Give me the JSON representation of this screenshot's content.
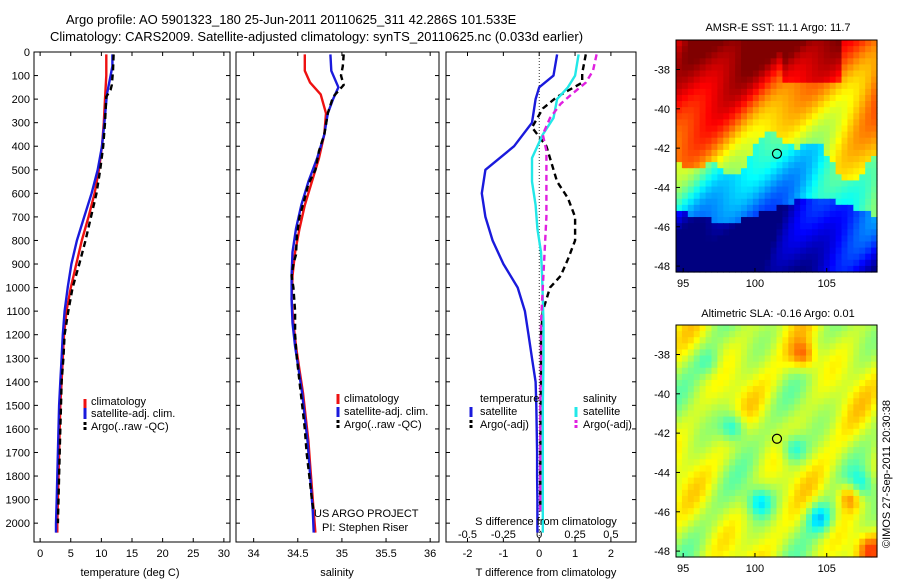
{
  "header": {
    "line1": "Argo profile: AO 5901323_180 25-Jun-2011 20110625_311 42.286S 101.533E",
    "line2": "Climatology: CARS2009. Satellite-adjusted climatology: synTS_20110625.nc (0.033d earlier)"
  },
  "colors": {
    "climatology": "#ee1111",
    "satellite": "#1a1adc",
    "argo": "#000000",
    "sal_satellite": "#22e8e8",
    "sal_argo": "#e020e0"
  },
  "chart_data": [
    {
      "id": "temperature",
      "type": "line",
      "xlabel": "temperature (deg C)",
      "ylabel": "",
      "xlim": [
        -1,
        31
      ],
      "ylim": [
        0,
        2080
      ],
      "y_reversed": true,
      "xticks": [
        0,
        5,
        10,
        15,
        20,
        25,
        30
      ],
      "yticks": [
        0,
        100,
        200,
        300,
        400,
        500,
        600,
        700,
        800,
        900,
        1000,
        1100,
        1200,
        1300,
        1400,
        1500,
        1600,
        1700,
        1800,
        1900,
        2000
      ],
      "legend": [
        "climatology",
        "satellite-adj. clim.",
        "Argo(..raw -QC)"
      ],
      "series": [
        {
          "name": "climatology",
          "style": "solid",
          "color": "#ee1111",
          "points": [
            [
              10.8,
              10
            ],
            [
              10.8,
              100
            ],
            [
              10.6,
              200
            ],
            [
              10.4,
              300
            ],
            [
              10.1,
              400
            ],
            [
              9.6,
              500
            ],
            [
              8.9,
              600
            ],
            [
              7.9,
              700
            ],
            [
              6.8,
              800
            ],
            [
              5.9,
              900
            ],
            [
              5.0,
              1000
            ],
            [
              4.3,
              1100
            ],
            [
              3.9,
              1200
            ],
            [
              3.7,
              1300
            ],
            [
              3.5,
              1400
            ],
            [
              3.3,
              1500
            ],
            [
              3.2,
              1600
            ],
            [
              3.1,
              1700
            ],
            [
              3.0,
              1800
            ],
            [
              2.9,
              1900
            ],
            [
              2.8,
              2000
            ],
            [
              2.8,
              2040
            ]
          ]
        },
        {
          "name": "satellite-adj. clim.",
          "style": "solid",
          "color": "#1a1adc",
          "points": [
            [
              11.8,
              10
            ],
            [
              11.8,
              60
            ],
            [
              11.5,
              100
            ],
            [
              10.9,
              180
            ],
            [
              10.5,
              300
            ],
            [
              10.1,
              400
            ],
            [
              9.4,
              500
            ],
            [
              8.4,
              600
            ],
            [
              7.2,
              700
            ],
            [
              6.0,
              800
            ],
            [
              5.1,
              900
            ],
            [
              4.5,
              1000
            ],
            [
              4.0,
              1100
            ],
            [
              3.7,
              1200
            ],
            [
              3.5,
              1300
            ],
            [
              3.3,
              1400
            ],
            [
              3.1,
              1500
            ],
            [
              3.0,
              1600
            ],
            [
              2.9,
              1700
            ],
            [
              2.8,
              1800
            ],
            [
              2.7,
              1900
            ],
            [
              2.6,
              2000
            ],
            [
              2.6,
              2040
            ]
          ]
        },
        {
          "name": "Argo(..raw -QC)",
          "style": "dashed",
          "color": "#000000",
          "points": [
            [
              12.0,
              10
            ],
            [
              11.9,
              80
            ],
            [
              11.7,
              140
            ],
            [
              11.5,
              160
            ],
            [
              10.8,
              190
            ],
            [
              10.6,
              300
            ],
            [
              10.3,
              400
            ],
            [
              9.8,
              500
            ],
            [
              9.2,
              600
            ],
            [
              8.3,
              700
            ],
            [
              7.4,
              800
            ],
            [
              6.4,
              900
            ],
            [
              5.3,
              1000
            ],
            [
              4.6,
              1100
            ],
            [
              4.0,
              1200
            ],
            [
              3.8,
              1300
            ],
            [
              3.5,
              1400
            ],
            [
              3.4,
              1500
            ],
            [
              3.3,
              1600
            ],
            [
              3.2,
              1700
            ],
            [
              3.1,
              1800
            ],
            [
              3.0,
              1900
            ],
            [
              2.9,
              2000
            ]
          ]
        }
      ]
    },
    {
      "id": "salinity",
      "type": "line",
      "xlabel": "salinity",
      "ylabel": "",
      "xlim": [
        33.8,
        36.1
      ],
      "ylim": [
        0,
        2080
      ],
      "y_reversed": true,
      "xticks": [
        34,
        34.5,
        35,
        35.5,
        36
      ],
      "legend": [
        "climatology",
        "satellite-adj. clim.",
        "Argo(..raw -QC)"
      ],
      "series": [
        {
          "name": "climatology",
          "style": "solid",
          "color": "#ee1111",
          "points": [
            [
              34.58,
              10
            ],
            [
              34.58,
              80
            ],
            [
              34.64,
              130
            ],
            [
              34.76,
              180
            ],
            [
              34.82,
              260
            ],
            [
              34.8,
              350
            ],
            [
              34.74,
              450
            ],
            [
              34.66,
              550
            ],
            [
              34.58,
              650
            ],
            [
              34.52,
              750
            ],
            [
              34.47,
              850
            ],
            [
              34.44,
              950
            ],
            [
              34.43,
              1050
            ],
            [
              34.45,
              1150
            ],
            [
              34.48,
              1250
            ],
            [
              34.52,
              1350
            ],
            [
              34.56,
              1450
            ],
            [
              34.59,
              1550
            ],
            [
              34.62,
              1650
            ],
            [
              34.64,
              1750
            ],
            [
              34.66,
              1850
            ],
            [
              34.68,
              1950
            ],
            [
              34.7,
              2040
            ]
          ]
        },
        {
          "name": "satellite-adj. clim.",
          "style": "solid",
          "color": "#1a1adc",
          "points": [
            [
              34.87,
              10
            ],
            [
              34.88,
              80
            ],
            [
              34.96,
              150
            ],
            [
              34.9,
              200
            ],
            [
              34.84,
              260
            ],
            [
              34.8,
              350
            ],
            [
              34.72,
              450
            ],
            [
              34.62,
              550
            ],
            [
              34.54,
              650
            ],
            [
              34.48,
              750
            ],
            [
              34.44,
              850
            ],
            [
              34.43,
              950
            ],
            [
              34.43,
              1050
            ],
            [
              34.44,
              1150
            ],
            [
              34.47,
              1250
            ],
            [
              34.51,
              1350
            ],
            [
              34.55,
              1450
            ],
            [
              34.58,
              1550
            ],
            [
              34.61,
              1650
            ],
            [
              34.63,
              1750
            ],
            [
              34.65,
              1850
            ],
            [
              34.67,
              1950
            ],
            [
              34.68,
              2040
            ]
          ]
        },
        {
          "name": "Argo(..raw -QC)",
          "style": "dashed",
          "color": "#000000",
          "points": [
            [
              35.02,
              10
            ],
            [
              35.01,
              60
            ],
            [
              34.99,
              100
            ],
            [
              35.02,
              140
            ],
            [
              34.9,
              190
            ],
            [
              34.84,
              260
            ],
            [
              34.8,
              350
            ],
            [
              34.74,
              420
            ],
            [
              34.7,
              500
            ],
            [
              34.62,
              560
            ],
            [
              34.58,
              620
            ],
            [
              34.52,
              700
            ],
            [
              34.49,
              780
            ],
            [
              34.48,
              860
            ],
            [
              34.45,
              900
            ],
            [
              34.43,
              950
            ],
            [
              34.45,
              1000
            ],
            [
              34.47,
              1100
            ],
            [
              34.47,
              1200
            ],
            [
              34.49,
              1300
            ],
            [
              34.52,
              1400
            ],
            [
              34.55,
              1500
            ],
            [
              34.58,
              1600
            ],
            [
              34.6,
              1700
            ],
            [
              34.63,
              1800
            ],
            [
              34.66,
              1900
            ],
            [
              34.68,
              1950
            ]
          ]
        }
      ],
      "annotations": [
        "US ARGO PROJECT",
        "PI: Stephen Riser"
      ]
    },
    {
      "id": "differences",
      "type": "line",
      "xlabel": "T difference from climatology",
      "xlabel_top": "S difference from climatology",
      "xlim": [
        -2.6,
        2.7
      ],
      "ylim": [
        0,
        2080
      ],
      "y_reversed": true,
      "xticks": [
        -2,
        -1,
        0,
        1,
        2
      ],
      "sticks_labels": [
        "-0.5",
        "-0.25",
        "0",
        "0.25",
        "0.5"
      ],
      "legend_headers": [
        "temperature",
        "salinity"
      ],
      "legend": [
        "satellite",
        "Argo(-adj)",
        "satellite",
        "Argo(-adj)"
      ],
      "series": [
        {
          "name": "satellite",
          "group": "temperature",
          "style": "solid",
          "color": "#1a1adc",
          "points": [
            [
              0.5,
              10
            ],
            [
              0.4,
              100
            ],
            [
              0,
              150
            ],
            [
              -0.1,
              200
            ],
            [
              -0.2,
              300
            ],
            [
              -0.7,
              400
            ],
            [
              -1.5,
              500
            ],
            [
              -1.6,
              600
            ],
            [
              -1.5,
              700
            ],
            [
              -1.3,
              800
            ],
            [
              -1.0,
              900
            ],
            [
              -0.6,
              1000
            ],
            [
              -0.4,
              1100
            ],
            [
              -0.3,
              1200
            ],
            [
              -0.2,
              1300
            ],
            [
              -0.1,
              1400
            ],
            [
              -0.08,
              1500
            ],
            [
              -0.07,
              1600
            ],
            [
              -0.06,
              1700
            ],
            [
              -0.06,
              1800
            ],
            [
              -0.05,
              1900
            ],
            [
              -0.05,
              2000
            ],
            [
              -0.05,
              2040
            ]
          ]
        },
        {
          "name": "Argo(-adj)",
          "group": "temperature",
          "style": "dashed",
          "color": "#000000",
          "points": [
            [
              1.3,
              10
            ],
            [
              1.2,
              90
            ],
            [
              1.2,
              130
            ],
            [
              0.5,
              190
            ],
            [
              0.1,
              240
            ],
            [
              -0.2,
              320
            ],
            [
              0.2,
              400
            ],
            [
              0.5,
              550
            ],
            [
              0.8,
              620
            ],
            [
              1.0,
              700
            ],
            [
              1.0,
              800
            ],
            [
              0.8,
              880
            ],
            [
              0.6,
              950
            ],
            [
              0.3,
              1000
            ],
            [
              0.2,
              1050
            ],
            [
              0.1,
              1100
            ],
            [
              0.05,
              1200
            ],
            [
              0.05,
              1400
            ],
            [
              0.04,
              1600
            ],
            [
              0.03,
              1800
            ],
            [
              0.03,
              1950
            ]
          ]
        },
        {
          "name": "satellite",
          "group": "salinity",
          "style": "solid",
          "color": "#22e8e8",
          "points": [
            [
              1.1,
              10
            ],
            [
              1.0,
              100
            ],
            [
              0.8,
              150
            ],
            [
              0.5,
              200
            ],
            [
              0.4,
              280
            ],
            [
              0.1,
              350
            ],
            [
              -0.2,
              450
            ],
            [
              -0.2,
              550
            ],
            [
              -0.1,
              650
            ],
            [
              -0.05,
              750
            ],
            [
              0.05,
              850
            ],
            [
              0.08,
              950
            ],
            [
              0.1,
              1050
            ],
            [
              0.12,
              1150
            ],
            [
              0.12,
              1300
            ],
            [
              0.1,
              1500
            ],
            [
              0.1,
              1700
            ],
            [
              0.1,
              1900
            ],
            [
              0.1,
              2040
            ]
          ]
        },
        {
          "name": "Argo(-adj)",
          "group": "salinity",
          "style": "dashed",
          "color": "#e020e0",
          "points": [
            [
              1.6,
              10
            ],
            [
              1.5,
              80
            ],
            [
              1.3,
              130
            ],
            [
              0.9,
              180
            ],
            [
              0.6,
              220
            ],
            [
              0.3,
              280
            ],
            [
              0.1,
              350
            ],
            [
              0.2,
              420
            ],
            [
              0.2,
              550
            ],
            [
              0.2,
              700
            ],
            [
              0.15,
              850
            ],
            [
              0.1,
              1000
            ],
            [
              0.05,
              1150
            ],
            [
              0.05,
              1300
            ],
            [
              0.03,
              1500
            ],
            [
              0.03,
              1700
            ],
            [
              0.03,
              1900
            ],
            [
              0.03,
              1950
            ]
          ]
        }
      ]
    },
    {
      "id": "sst_map",
      "type": "heatmap",
      "title": "AMSR-E SST: 11.1 Argo: 11.7",
      "xlim": [
        94.5,
        108.5
      ],
      "ylim": [
        -48.3,
        -36.5
      ],
      "xticks": [
        95,
        100,
        105
      ],
      "yticks": [
        -38,
        -40,
        -42,
        -44,
        -46,
        -48
      ],
      "marker": {
        "lon": 101.533,
        "lat": -42.286
      }
    },
    {
      "id": "sla_map",
      "type": "heatmap",
      "title": "Altimetric SLA: -0.16 Argo: 0.01",
      "xlim": [
        94.5,
        108.5
      ],
      "ylim": [
        -48.3,
        -36.5
      ],
      "xticks": [
        95,
        100,
        105
      ],
      "yticks": [
        -38,
        -40,
        -42,
        -44,
        -46,
        -48
      ],
      "marker": {
        "lon": 101.533,
        "lat": -42.286
      }
    }
  ],
  "footer": {
    "stamp": "©IMOS 27-Sep-2011 20:30:38"
  }
}
